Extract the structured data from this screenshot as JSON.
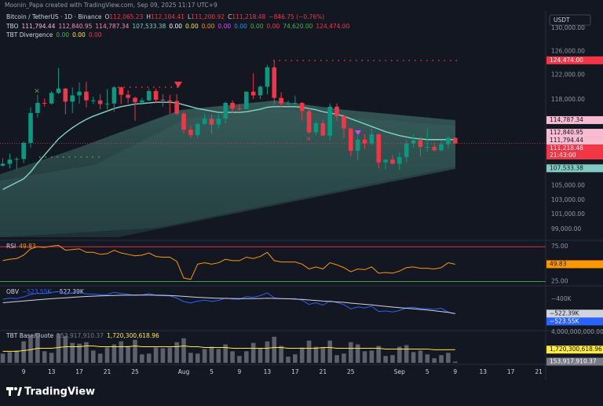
{
  "header": {
    "credit": "Moonin_Papa created with TradingView.com, Sep 09, 2025 11:17 UTC+9",
    "currency": "USDT",
    "brand": "TradingView"
  },
  "chart_data": [
    {
      "type": "candlestick",
      "legend": {
        "symbol": "Bitcoin / TetherUS · 1D · Binance",
        "ohlc": [
          {
            "key": "O",
            "text": "112,065.23"
          },
          {
            "key": "H",
            "text": "112,104.41"
          },
          {
            "key": "L",
            "text": "111,200.92"
          },
          {
            "key": "C",
            "text": "111,218.48"
          }
        ],
        "change": "−846.75 (−0.76%)",
        "change_color": "#f23645"
      },
      "indicators": [
        {
          "name": "TBO",
          "items": [
            {
              "text": "111,794.44",
              "color": "#f8bbd0"
            },
            {
              "text": "112,840.95",
              "color": "#f48fb1"
            },
            {
              "text": "114,787.34",
              "color": "#f48fb1"
            },
            {
              "text": "107,533.38",
              "color": "#80cbc4"
            },
            {
              "text": "0.00",
              "color": "#ffffff"
            },
            {
              "text": "0.00",
              "color": "#ffeb3b"
            },
            {
              "text": "0.00",
              "color": "#ff9800"
            },
            {
              "text": "0.00",
              "color": "#e040fb"
            },
            {
              "text": "0.00",
              "color": "#2196f3"
            },
            {
              "text": "0.00",
              "color": "#4caf50"
            },
            {
              "text": "0.00",
              "color": "#f23645"
            },
            {
              "text": "74,620.00",
              "color": "#4caf50"
            },
            {
              "text": "124,474.00",
              "color": "#f23645"
            }
          ]
        },
        {
          "name": "TBT Divergence",
          "items": [
            {
              "text": "0.00",
              "color": "#4caf50"
            },
            {
              "text": "0.00",
              "color": "#ffeb3b"
            },
            {
              "text": "0.00",
              "color": "#f23645"
            }
          ]
        }
      ],
      "xlim": [
        -0.4,
        78
      ],
      "xticks": [
        {
          "value": 3,
          "label": "9"
        },
        {
          "value": 7,
          "label": "13"
        },
        {
          "value": 11,
          "label": "17"
        },
        {
          "value": 15,
          "label": "21"
        },
        {
          "value": 19,
          "label": "25"
        },
        {
          "value": 26,
          "label": "Aug"
        },
        {
          "value": 30,
          "label": "5"
        },
        {
          "value": 34,
          "label": "9"
        },
        {
          "value": 38,
          "label": "13"
        },
        {
          "value": 42,
          "label": "17"
        },
        {
          "value": 46,
          "label": "21"
        },
        {
          "value": 50,
          "label": "25"
        },
        {
          "value": 57,
          "label": "Sep"
        },
        {
          "value": 61,
          "label": "5"
        },
        {
          "value": 65,
          "label": "9"
        },
        {
          "value": 69,
          "label": "13"
        },
        {
          "value": 73,
          "label": "17"
        },
        {
          "value": 77,
          "label": "21"
        }
      ],
      "ylim": [
        97640,
        133080
      ],
      "log_scale": true,
      "yticks": [
        {
          "value": 99000,
          "label": "99,000.00"
        },
        {
          "value": 101000,
          "label": "101,000.00"
        },
        {
          "value": 103000,
          "label": "103,000.00"
        },
        {
          "value": 105000,
          "label": "105,000.00"
        },
        {
          "value": 118000,
          "label": "118,000.00"
        },
        {
          "value": 122000,
          "label": "122,000.00"
        },
        {
          "value": 126000,
          "label": "126,000.00"
        },
        {
          "value": 130000,
          "label": "130,000.00"
        }
      ],
      "up_color": "#089981",
      "down_color": "#f23645",
      "open": [
        107900,
        108200,
        108800,
        108900,
        111300,
        115900,
        117500,
        117400,
        119100,
        119800,
        117700,
        118700,
        119300,
        117900,
        117900,
        117300,
        117400,
        120000,
        118800,
        118300,
        117600,
        117900,
        119400,
        118000,
        117900,
        117800,
        115800,
        113300,
        112500,
        114200,
        115000,
        114100,
        115000,
        117500,
        116600,
        116500,
        119300,
        118700,
        120100,
        123300,
        118300,
        117400,
        117400,
        117500,
        116200,
        112900,
        114300,
        112400,
        116900,
        115400,
        113500,
        110100,
        111800,
        111200,
        112600,
        108400,
        108800,
        108200,
        109200,
        111200,
        111700,
        110700,
        110700,
        110200,
        111100,
        112065.23
      ],
      "high": [
        109000,
        109700,
        109200,
        111500,
        116800,
        118800,
        118200,
        119400,
        123200,
        119900,
        120000,
        120800,
        120900,
        118500,
        118900,
        119700,
        120200,
        120100,
        119500,
        118500,
        118300,
        119800,
        119800,
        118900,
        118800,
        118900,
        116100,
        114000,
        114400,
        115800,
        115700,
        115700,
        117700,
        117900,
        117300,
        119300,
        122300,
        120300,
        123700,
        124474,
        119200,
        117900,
        118600,
        117600,
        116800,
        114600,
        114800,
        117400,
        117400,
        115700,
        113600,
        112400,
        112600,
        113500,
        112700,
        108900,
        109500,
        109900,
        111800,
        112600,
        112200,
        113400,
        111300,
        111600,
        112300,
        112104.41
      ],
      "low": [
        107800,
        107500,
        107400,
        108300,
        110600,
        115200,
        116900,
        117200,
        118900,
        115700,
        115900,
        117400,
        116800,
        117300,
        116500,
        116500,
        116100,
        117300,
        117400,
        114700,
        117200,
        117800,
        117500,
        116900,
        115800,
        115600,
        112700,
        112000,
        112000,
        114000,
        112700,
        113400,
        114300,
        115900,
        116300,
        116500,
        118100,
        118100,
        118900,
        117200,
        116800,
        117200,
        117300,
        114700,
        112700,
        112400,
        112400,
        111700,
        114700,
        112000,
        109300,
        108700,
        110400,
        110900,
        107500,
        107400,
        108100,
        107300,
        108400,
        110600,
        109300,
        110000,
        110000,
        110000,
        110500,
        111200.92
      ],
      "close": [
        108200,
        108800,
        108900,
        111300,
        115900,
        117500,
        117400,
        119100,
        119800,
        117700,
        118700,
        119300,
        117900,
        117900,
        117300,
        117400,
        120000,
        118800,
        118300,
        117600,
        117900,
        119400,
        118000,
        117900,
        117800,
        115800,
        113300,
        112500,
        114200,
        115000,
        114100,
        115000,
        117500,
        116600,
        116500,
        119300,
        118700,
        120100,
        123300,
        118300,
        117400,
        117400,
        117500,
        116200,
        112900,
        114300,
        112400,
        116900,
        115400,
        113500,
        110100,
        111800,
        111200,
        112600,
        108400,
        108800,
        108200,
        109200,
        111200,
        111700,
        110700,
        110700,
        110200,
        111100,
        112065.23,
        111218.48
      ],
      "ma": {
        "color": "#7fd8c0",
        "values": [
          104500,
          105000,
          105500,
          106000,
          107000,
          108300,
          109500,
          110700,
          111900,
          112800,
          113600,
          114300,
          114900,
          115400,
          115800,
          116200,
          116600,
          116900,
          117100,
          117300,
          117400,
          117500,
          117600,
          117600,
          117600,
          117500,
          117200,
          116900,
          116600,
          116400,
          116200,
          116000,
          116000,
          116000,
          116000,
          116100,
          116300,
          116500,
          116800,
          116900,
          116900,
          116900,
          116900,
          116800,
          116600,
          116400,
          116100,
          115900,
          115700,
          115400,
          115000,
          114600,
          114200,
          113800,
          113400,
          113000,
          112700,
          112400,
          112200,
          112000,
          111900,
          111800,
          111800,
          111800,
          111800,
          111794.44
        ]
      },
      "price_labels": [
        {
          "value": 124474,
          "label": "124,474.00",
          "color": "#f23645",
          "text_color": "#ffffff"
        },
        {
          "value": 114787.34,
          "label": "114,787.34",
          "color": "#f8bbd0",
          "text_color": "#131722"
        },
        {
          "value": 112840.95,
          "label": "112,840.95",
          "color": "#f8bbd0",
          "text_color": "#131722"
        },
        {
          "value": 111794.44,
          "label": "111,794.44",
          "color": "#f8bbd0",
          "text_color": "#131722"
        },
        {
          "value": 111218.48,
          "label": "111,218.48",
          "color": "#f23645",
          "text_color": "#ffffff",
          "countdown": "21:43:00"
        },
        {
          "value": 107533.38,
          "label": "107,533.38",
          "color": "#80cbc4",
          "text_color": "#131722"
        }
      ]
    },
    {
      "type": "line",
      "title": "RSI",
      "last_label": "49.83",
      "color": "#ff9800",
      "ylim": [
        21,
        82
      ],
      "yticks": [
        {
          "value": 75,
          "label": "75.00"
        },
        {
          "value": 25,
          "label": "25.00"
        }
      ],
      "guide_colors": [
        "#f23645",
        "#4caf50"
      ],
      "values": [
        55,
        57,
        58,
        63,
        72,
        75,
        74,
        76,
        77,
        70,
        71,
        72,
        67,
        67,
        64,
        65,
        70,
        66,
        64,
        62,
        63,
        66,
        61,
        60,
        60,
        54,
        30,
        28,
        50,
        52,
        50,
        52,
        57,
        55,
        55,
        60,
        58,
        61,
        67,
        55,
        53,
        53,
        53,
        50,
        43,
        46,
        43,
        52,
        49,
        45,
        39,
        43,
        42,
        46,
        37,
        38,
        37,
        40,
        45,
        46,
        44,
        44,
        43,
        45,
        52,
        49.83
      ]
    },
    {
      "type": "line",
      "title": "OBV",
      "ylim": [
        -660000,
        -300000
      ],
      "yticks": [
        {
          "value": -400000,
          "label": "−400K"
        }
      ],
      "series": [
        {
          "color": "#2962ff",
          "text_color": "#ffffff",
          "last_label": "−523.55K",
          "values": [
            -400000,
            -392000,
            -394000,
            -380000,
            -360000,
            -350000,
            -352000,
            -342000,
            -336000,
            -356000,
            -346000,
            -340000,
            -356000,
            -356000,
            -362000,
            -360000,
            -342000,
            -352000,
            -358000,
            -368000,
            -364000,
            -352000,
            -368000,
            -370000,
            -372000,
            -390000,
            -420000,
            -432000,
            -416000,
            -408000,
            -418000,
            -410000,
            -390000,
            -398000,
            -400000,
            -378000,
            -384000,
            -370000,
            -346000,
            -388000,
            -396000,
            -396000,
            -395000,
            -408000,
            -444000,
            -430000,
            -450000,
            -414000,
            -428000,
            -446000,
            -482000,
            -466000,
            -474000,
            -460000,
            -504000,
            -500000,
            -508000,
            -496000,
            -474000,
            -468000,
            -480000,
            -480000,
            -486000,
            -476000,
            -510000,
            -523550
          ]
        },
        {
          "color": "#d1d4dc",
          "text_color": "#131722",
          "last_label": "−522.39K",
          "values": [
            -430000,
            -425000,
            -420000,
            -415000,
            -410000,
            -405000,
            -400000,
            -396000,
            -392000,
            -388000,
            -384000,
            -380000,
            -377000,
            -374000,
            -372000,
            -370000,
            -368000,
            -367000,
            -366000,
            -365000,
            -365000,
            -365000,
            -366000,
            -367000,
            -369000,
            -372000,
            -376000,
            -380000,
            -384000,
            -387000,
            -390000,
            -392000,
            -393000,
            -394000,
            -395000,
            -395000,
            -395000,
            -394000,
            -392000,
            -393000,
            -395000,
            -397000,
            -399000,
            -402000,
            -407000,
            -411000,
            -416000,
            -419000,
            -423000,
            -427000,
            -433000,
            -438000,
            -443000,
            -448000,
            -455000,
            -461000,
            -467000,
            -472000,
            -477000,
            -482000,
            -487000,
            -492000,
            -498000,
            -505000,
            -512000,
            -522390
          ]
        }
      ]
    },
    {
      "type": "bar",
      "title": "TBT Base/Quote",
      "ylim": [
        0,
        4100000000
      ],
      "yticks": [
        {
          "value": 4000000000,
          "label": "4,000,000,000.00"
        }
      ],
      "series": [
        {
          "type": "bar",
          "color": "#787b86",
          "text_color": "#ffffff",
          "last_label": "153,917,910.37",
          "values": [
            1200000000,
            1400000000,
            1600000000,
            2800000000,
            3600000000,
            3900000000,
            1500000000,
            1300000000,
            3800000000,
            3500000000,
            2600000000,
            2500000000,
            2700000000,
            1600000000,
            1200000000,
            2000000000,
            2400000000,
            2800000000,
            2200000000,
            3000000000,
            1100000000,
            1200000000,
            2000000000,
            1900000000,
            2000000000,
            2700000000,
            3200000000,
            1300000000,
            1200000000,
            1800000000,
            2100000000,
            1800000000,
            2400000000,
            1500000000,
            900000000,
            1500000000,
            2600000000,
            1900000000,
            2800000000,
            3400000000,
            2200000000,
            800000000,
            1100000000,
            2000000000,
            2900000000,
            2100000000,
            2000000000,
            2900000000,
            1000000000,
            1200000000,
            2700000000,
            2400000000,
            1500000000,
            1600000000,
            2200000000,
            900000000,
            1000000000,
            2100000000,
            2300000000,
            1400000000,
            1600000000,
            1100000000,
            600000000,
            1000000000,
            1300000000,
            153917910.37
          ]
        },
        {
          "type": "line",
          "color": "#ffeb3b",
          "text_color": "#131722",
          "last_label": "1,720,300,618.96",
          "values": [
            1500000000,
            1500000000,
            1500000000,
            1600000000,
            1700000000,
            1900000000,
            1900000000,
            1900000000,
            2000000000,
            2100000000,
            2100000000,
            2100000000,
            2200000000,
            2200000000,
            2100000000,
            2100000000,
            2100000000,
            2100000000,
            2100000000,
            2200000000,
            2100000000,
            2100000000,
            2100000000,
            2100000000,
            2100000000,
            2100000000,
            2200000000,
            2100000000,
            2100000000,
            2000000000,
            2000000000,
            2000000000,
            2000000000,
            1900000000,
            1900000000,
            1900000000,
            1900000000,
            1900000000,
            1900000000,
            2000000000,
            2000000000,
            1900000000,
            1900000000,
            1900000000,
            1900000000,
            1900000000,
            2000000000,
            2000000000,
            1900000000,
            1900000000,
            1900000000,
            1900000000,
            1900000000,
            1900000000,
            1900000000,
            1800000000,
            1800000000,
            1800000000,
            1800000000,
            1800000000,
            1800000000,
            1800000000,
            1700000000,
            1700000000,
            1700000000,
            1720300618.96
          ]
        }
      ]
    }
  ]
}
